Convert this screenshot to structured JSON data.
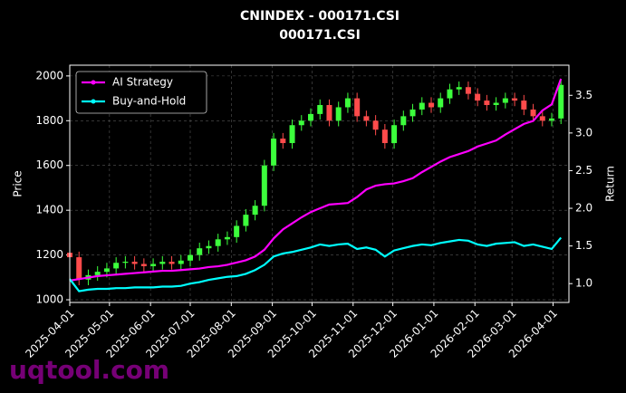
{
  "chart_data": {
    "type": "candlestick",
    "title": "CNINDEX - 000171.CSI",
    "subtitle": "000171.CSI",
    "y_label": "Price",
    "y2_label": "Return",
    "watermark": "uqtool.com",
    "grid": true,
    "legend": "upper left",
    "up_color": "#3cff3c",
    "down_color": "#ff4b4b",
    "xlim": [
      "2025-04-01",
      "2026-04-13"
    ],
    "xticks": [
      "2025-04-01",
      "2025-05-01",
      "2025-06-01",
      "2025-07-01",
      "2025-08-01",
      "2025-09-01",
      "2025-10-01",
      "2025-11-01",
      "2025-12-01",
      "2026-01-01",
      "2026-02-01",
      "2026-03-01",
      "2026-04-01"
    ],
    "ylim": [
      988,
      2048
    ],
    "yticks": [
      1000,
      1200,
      1400,
      1600,
      1800,
      2000
    ],
    "y2lim": [
      0.75,
      3.9
    ],
    "y2ticks": [
      {
        "value": 1,
        "label": "1.0"
      },
      1.5,
      {
        "value": 2,
        "label": "2.0"
      },
      2.5,
      {
        "value": 3,
        "label": "3.0"
      },
      3.5
    ],
    "x": [
      "2025-04-01",
      "2025-04-08",
      "2025-04-15",
      "2025-04-22",
      "2025-04-29",
      "2025-05-06",
      "2025-05-13",
      "2025-05-20",
      "2025-05-27",
      "2025-06-03",
      "2025-06-10",
      "2025-06-17",
      "2025-06-24",
      "2025-07-01",
      "2025-07-08",
      "2025-07-15",
      "2025-07-22",
      "2025-07-29",
      "2025-08-05",
      "2025-08-12",
      "2025-08-19",
      "2025-08-26",
      "2025-09-02",
      "2025-09-09",
      "2025-09-16",
      "2025-09-23",
      "2025-09-30",
      "2025-10-07",
      "2025-10-14",
      "2025-10-21",
      "2025-10-28",
      "2025-11-04",
      "2025-11-11",
      "2025-11-18",
      "2025-11-25",
      "2025-12-02",
      "2025-12-09",
      "2025-12-16",
      "2025-12-23",
      "2025-12-30",
      "2026-01-06",
      "2026-01-13",
      "2026-01-20",
      "2026-01-27",
      "2026-02-03",
      "2026-02-10",
      "2026-02-17",
      "2026-02-24",
      "2026-03-03",
      "2026-03-10",
      "2026-03-17",
      "2026-03-24",
      "2026-03-31",
      "2026-04-07"
    ],
    "open": [
      1210,
      1190,
      1090,
      1110,
      1125,
      1140,
      1165,
      1170,
      1160,
      1150,
      1160,
      1170,
      1160,
      1175,
      1200,
      1230,
      1240,
      1270,
      1280,
      1330,
      1380,
      1420,
      1600,
      1720,
      1700,
      1780,
      1800,
      1830,
      1870,
      1800,
      1860,
      1900,
      1820,
      1800,
      1760,
      1700,
      1780,
      1820,
      1850,
      1880,
      1860,
      1900,
      1940,
      1950,
      1920,
      1890,
      1870,
      1880,
      1900,
      1890,
      1850,
      1820,
      1800,
      1810
    ],
    "high": [
      1235,
      1215,
      1135,
      1150,
      1165,
      1190,
      1195,
      1195,
      1185,
      1185,
      1195,
      1195,
      1200,
      1225,
      1255,
      1265,
      1295,
      1305,
      1355,
      1405,
      1445,
      1625,
      1745,
      1745,
      1805,
      1825,
      1855,
      1895,
      1895,
      1885,
      1925,
      1925,
      1845,
      1825,
      1785,
      1805,
      1845,
      1875,
      1905,
      1905,
      1925,
      1965,
      1975,
      1975,
      1945,
      1915,
      1905,
      1925,
      1925,
      1915,
      1875,
      1845,
      1835,
      1985
    ],
    "low": [
      1165,
      1065,
      1065,
      1085,
      1100,
      1115,
      1140,
      1135,
      1125,
      1125,
      1135,
      1135,
      1135,
      1150,
      1175,
      1205,
      1215,
      1245,
      1255,
      1305,
      1355,
      1395,
      1575,
      1675,
      1675,
      1755,
      1775,
      1805,
      1775,
      1775,
      1835,
      1795,
      1775,
      1735,
      1675,
      1675,
      1755,
      1795,
      1825,
      1835,
      1835,
      1875,
      1915,
      1895,
      1865,
      1845,
      1845,
      1855,
      1865,
      1825,
      1795,
      1775,
      1775,
      1785
    ],
    "close": [
      1190,
      1090,
      1110,
      1125,
      1140,
      1165,
      1170,
      1160,
      1150,
      1160,
      1170,
      1160,
      1175,
      1200,
      1230,
      1240,
      1270,
      1280,
      1330,
      1380,
      1420,
      1600,
      1720,
      1700,
      1780,
      1800,
      1830,
      1870,
      1800,
      1860,
      1900,
      1820,
      1800,
      1760,
      1700,
      1780,
      1820,
      1850,
      1880,
      1860,
      1900,
      1940,
      1950,
      1920,
      1890,
      1870,
      1880,
      1900,
      1890,
      1850,
      1820,
      1800,
      1810,
      1960
    ],
    "series": [
      {
        "name": "AI Strategy",
        "color": "#ff00ff",
        "axis": "y2",
        "values": [
          1.04,
          1.06,
          1.08,
          1.1,
          1.11,
          1.12,
          1.13,
          1.14,
          1.15,
          1.16,
          1.17,
          1.17,
          1.18,
          1.19,
          1.2,
          1.22,
          1.23,
          1.25,
          1.28,
          1.31,
          1.36,
          1.45,
          1.6,
          1.72,
          1.8,
          1.88,
          1.95,
          2.0,
          2.05,
          2.06,
          2.07,
          2.15,
          2.25,
          2.3,
          2.32,
          2.33,
          2.36,
          2.4,
          2.48,
          2.55,
          2.62,
          2.68,
          2.72,
          2.76,
          2.82,
          2.86,
          2.9,
          2.98,
          3.05,
          3.12,
          3.16,
          3.3,
          3.38,
          3.72
        ]
      },
      {
        "name": "Buy-and-Hold",
        "color": "#00ffff",
        "axis": "y2",
        "values": [
          1.06,
          0.9,
          0.92,
          0.93,
          0.93,
          0.94,
          0.94,
          0.95,
          0.95,
          0.95,
          0.96,
          0.96,
          0.97,
          1.0,
          1.02,
          1.05,
          1.07,
          1.09,
          1.1,
          1.13,
          1.18,
          1.25,
          1.36,
          1.4,
          1.42,
          1.45,
          1.48,
          1.52,
          1.5,
          1.52,
          1.53,
          1.46,
          1.48,
          1.45,
          1.36,
          1.44,
          1.47,
          1.5,
          1.52,
          1.51,
          1.54,
          1.56,
          1.58,
          1.57,
          1.52,
          1.5,
          1.53,
          1.54,
          1.55,
          1.5,
          1.52,
          1.49,
          1.46,
          1.61
        ]
      }
    ]
  }
}
